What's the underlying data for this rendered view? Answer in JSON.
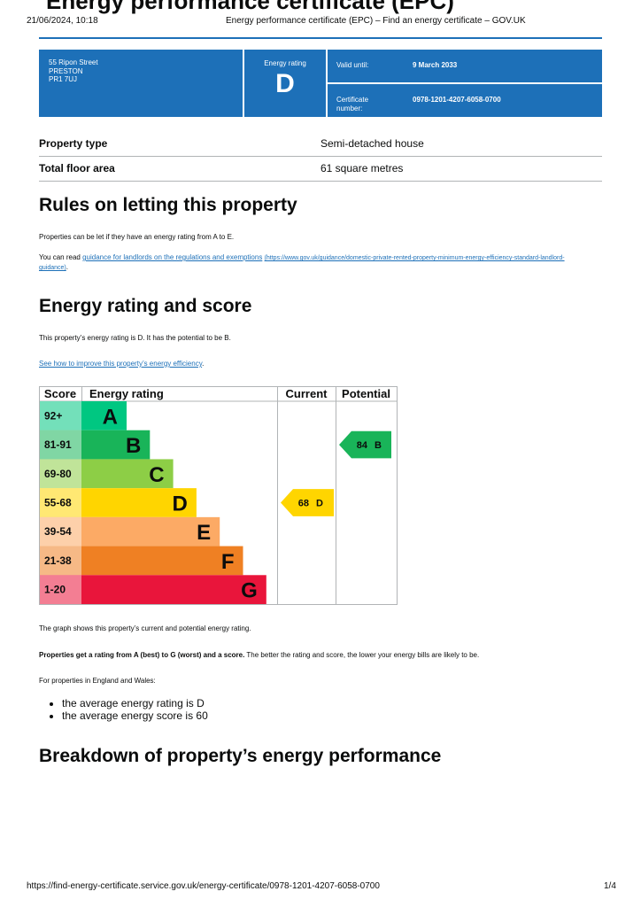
{
  "browser_header": {
    "timestamp": "21/06/2024, 10:18",
    "page_title": "Energy performance certificate (EPC) – Find an energy certificate – GOV.UK"
  },
  "title": "Energy performance certificate (EPC)",
  "summary": {
    "address": [
      "55 Ripon Street",
      "PRESTON",
      "PR1 7UJ"
    ],
    "rating_label": "Energy rating",
    "rating": "D",
    "valid_until_label": "Valid until:",
    "valid_until": "9 March 2033",
    "certificate_label": "Certificate number:",
    "certificate_number": "0978-1201-4207-6058-0700"
  },
  "property": [
    {
      "label": "Property type",
      "value": "Semi-detached house"
    },
    {
      "label": "Total floor area",
      "value": "61 square metres"
    }
  ],
  "letting": {
    "heading": "Rules on letting this property",
    "text": "Properties can be let if they have an energy rating from A to E.",
    "read_prefix": "You can read ",
    "link": "guidance for landlords on the regulations and exemptions",
    "url": "(https://www.gov.uk/guidance/domestic-private-rented-property-minimum-energy-efficiency-standard-landlord-guidance)",
    "read_suffix": "."
  },
  "rating_section": {
    "heading": "Energy rating and score",
    "text": "This property’s energy rating is D. It has the potential to be B.",
    "link": "See how to improve this property’s energy efficiency",
    "link_suffix": "."
  },
  "rating_chart": {
    "headers": [
      "Score",
      "Energy rating",
      "Current",
      "Potential"
    ],
    "bands": [
      {
        "score": "92+",
        "letter": "A",
        "color": "#00c781"
      },
      {
        "score": "81-91",
        "letter": "B",
        "color": "#19b459"
      },
      {
        "score": "69-80",
        "letter": "C",
        "color": "#8dce46"
      },
      {
        "score": "55-68",
        "letter": "D",
        "color": "#ffd500"
      },
      {
        "score": "39-54",
        "letter": "E",
        "color": "#fcaa65"
      },
      {
        "score": "21-38",
        "letter": "F",
        "color": "#ef8023"
      },
      {
        "score": "1-20",
        "letter": "G",
        "color": "#e9153b"
      }
    ],
    "current": {
      "score": 68,
      "letter": "D"
    },
    "potential": {
      "score": 84,
      "letter": "B"
    }
  },
  "after_chart": {
    "graph_note": "The graph shows this property’s current and potential energy rating.",
    "bold": "Properties get a rating from A (best) to G (worst) and a score.",
    "rest": " The better the rating and score, the lower your energy bills are likely to be.",
    "region": "For properties in England and Wales:",
    "bullets": [
      "the average energy rating is D",
      "the average energy score is 60"
    ]
  },
  "breakdown_heading": "Breakdown of property’s energy performance",
  "footer": {
    "url": "https://find-energy-certificate.service.gov.uk/energy-certificate/0978-1201-4207-6058-0700",
    "page": "1/4"
  }
}
